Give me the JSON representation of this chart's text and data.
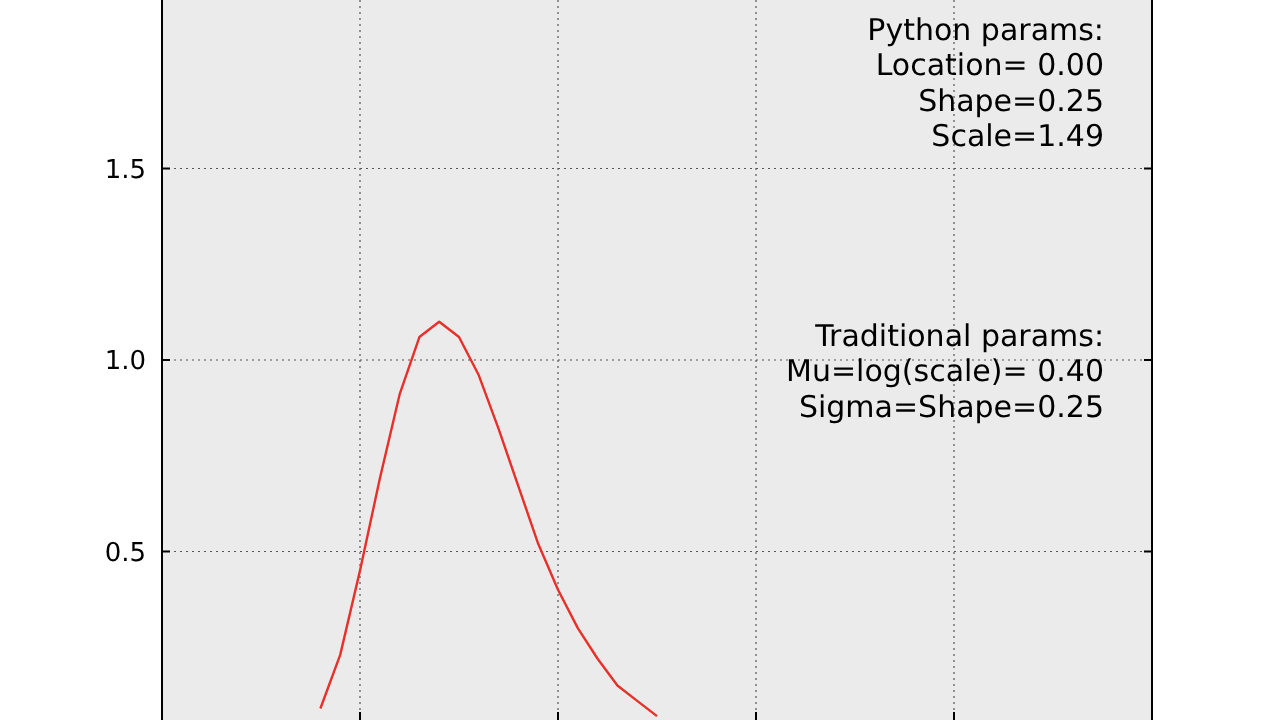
{
  "chart_data": {
    "type": "line",
    "categories": [
      null,
      null,
      null,
      null,
      null,
      null,
      null,
      null,
      null,
      null,
      null,
      null,
      null,
      null,
      null,
      null,
      null,
      null,
      null,
      null,
      null,
      null,
      null,
      null,
      null,
      null,
      null,
      null,
      null,
      null,
      null,
      null,
      null,
      null,
      null,
      null,
      null,
      null,
      null,
      null,
      null,
      null,
      null,
      null,
      null,
      null,
      null,
      null,
      null,
      null,
      null
    ],
    "series": [
      {
        "color": "#e8302a",
        "values": [
          null,
          null,
          null,
          null,
          null,
          null,
          null,
          null,
          0.09,
          0.23,
          0.45,
          0.69,
          0.91,
          1.06,
          1.1,
          1.06,
          0.96,
          0.82,
          0.67,
          0.52,
          0.4,
          0.3,
          0.22,
          0.15,
          0.11,
          0.07,
          null,
          null,
          null,
          null,
          null,
          null,
          null,
          null,
          null,
          null,
          null,
          null,
          null,
          null,
          null,
          null,
          null,
          null,
          null,
          null,
          null,
          null,
          null,
          null,
          null
        ]
      }
    ],
    "ylim": [
      0.06,
      1.94
    ],
    "yticks": [
      0.5,
      {
        "value": 1,
        "label": "1.0"
      },
      1.5
    ],
    "grid": true,
    "line_style": "solid",
    "marker": "none",
    "annotations": [
      "Python params:\nLocation= 0.00\nShape=0.25\nScale=1.49",
      "Traditional params:\nMu=log(scale)= 0.40\nSigma=Shape=0.25"
    ]
  }
}
